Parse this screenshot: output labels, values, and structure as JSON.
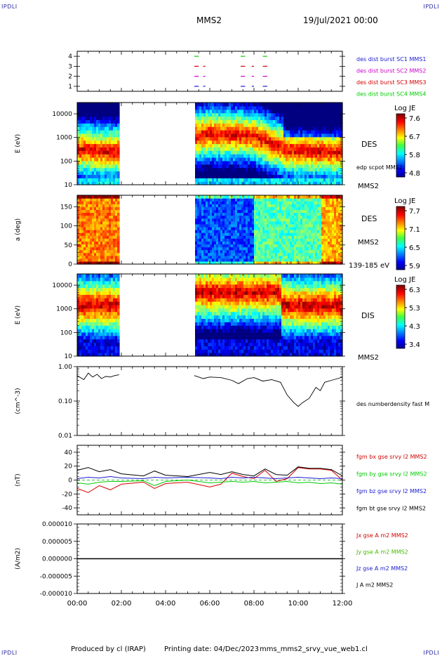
{
  "header": {
    "corner_label": "IPDLI",
    "spacecraft": "MMS2",
    "datetime": "19/Jul/2021 00:00"
  },
  "footer": {
    "produced_by": "Produced by cl (IRAP)",
    "printing_date": "Printing date: 04/Dec/2023",
    "script_name": "mms_mms2_srvy_vue_web1.cl"
  },
  "time_axis": {
    "range_hours": [
      0,
      12
    ],
    "tick_labels": [
      "00:00",
      "02:00",
      "04:00",
      "06:00",
      "08:00",
      "10:00",
      "12:00"
    ]
  },
  "colors": {
    "mms1": "#1a1ad0",
    "mms2": "#cc00cc",
    "mms3": "#d40000",
    "mms4": "#00cc00",
    "bx": "#d40000",
    "by": "#00cc00",
    "bz": "#1a1ad0",
    "bt": "#000000"
  },
  "chart_data": [
    {
      "type": "scatter",
      "panel": "burst-availability",
      "yticks": [
        "1",
        "2",
        "3",
        "4"
      ],
      "ylim": [
        0.5,
        4.5
      ],
      "legend": [
        "des dist burst SC1 MMS1",
        "des dist burst SC2 MMS2",
        "des dist burst SC3 MMS3",
        "des dist burst SC4 MMS4"
      ],
      "series": [
        {
          "name": "des dist burst SC1 MMS1",
          "y": 1,
          "intervals_hours": [
            [
              5.3,
              5.5
            ],
            [
              5.7,
              5.8
            ],
            [
              7.4,
              7.6
            ],
            [
              7.9,
              8.0
            ],
            [
              8.4,
              8.6
            ]
          ]
        },
        {
          "name": "des dist burst SC2 MMS2",
          "y": 2,
          "intervals_hours": [
            [
              5.3,
              5.5
            ],
            [
              5.7,
              5.8
            ],
            [
              7.4,
              7.6
            ],
            [
              7.9,
              8.0
            ],
            [
              8.4,
              8.6
            ]
          ]
        },
        {
          "name": "des dist burst SC3 MMS3",
          "y": 3,
          "intervals_hours": [
            [
              5.3,
              5.5
            ],
            [
              5.7,
              5.8
            ],
            [
              7.4,
              7.6
            ],
            [
              7.9,
              8.0
            ],
            [
              8.4,
              8.6
            ]
          ]
        },
        {
          "name": "des dist burst SC4 MMS4",
          "y": 4,
          "intervals_hours": [
            [
              5.3,
              5.5
            ],
            [
              7.4,
              7.6
            ],
            [
              8.4,
              8.6
            ]
          ]
        }
      ]
    },
    {
      "type": "heatmap",
      "panel": "des-energy",
      "ylabel": "E (eV)",
      "yscale": "log",
      "ylim": [
        10,
        30000
      ],
      "ytick_labels": [
        "10",
        "100",
        "1000",
        "10000"
      ],
      "right_labels": [
        "DES",
        "MMS2"
      ],
      "overlay_label": "edp scpot MMS2",
      "colorbar": {
        "title": "Log JE",
        "ticks": [
          "7.6",
          "6.7",
          "5.8",
          "4.8"
        ],
        "range": [
          4.8,
          7.6
        ]
      },
      "data_gap_hours": [
        1.95,
        5.3
      ],
      "peak_energy_ev_at_hours": [
        [
          0.5,
          300
        ],
        [
          1.5,
          250
        ],
        [
          6.0,
          1500
        ],
        [
          8.0,
          1200
        ],
        [
          9.5,
          300
        ],
        [
          11.5,
          250
        ]
      ]
    },
    {
      "type": "heatmap",
      "panel": "des-pitch-angle",
      "ylabel": "a (deg)",
      "ylim": [
        0,
        180
      ],
      "ytick_labels": [
        "0",
        "50",
        "100",
        "150"
      ],
      "right_labels": [
        "DES",
        "MMS2",
        "139-185 eV"
      ],
      "colorbar": {
        "title": "Log JE",
        "ticks": [
          "7.7",
          "7.1",
          "6.5",
          "5.9"
        ],
        "range": [
          5.9,
          7.7
        ]
      },
      "data_gap_hours": [
        1.95,
        5.3
      ]
    },
    {
      "type": "heatmap",
      "panel": "dis-energy",
      "ylabel": "E (eV)",
      "yscale": "log",
      "ylim": [
        10,
        30000
      ],
      "ytick_labels": [
        "10",
        "100",
        "1000",
        "10000"
      ],
      "right_labels": [
        "DIS",
        "MMS2"
      ],
      "colorbar": {
        "title": "Log JE",
        "ticks": [
          "6.3",
          "5.3",
          "4.3",
          "3.4"
        ],
        "range": [
          3.4,
          6.3
        ]
      },
      "data_gap_hours": [
        1.95,
        5.3
      ]
    },
    {
      "type": "line",
      "panel": "density",
      "ylabel": "(cm^-3)",
      "yscale": "log",
      "ylim": [
        0.01,
        1.0
      ],
      "ytick_labels": [
        "0.01",
        "0.10",
        "1.00"
      ],
      "series": [
        {
          "name": "des numberdensity fast M",
          "x_hours": [
            0.0,
            0.3,
            0.5,
            0.7,
            0.9,
            1.1,
            1.3,
            1.5,
            1.7,
            1.9,
            5.3,
            5.7,
            6.0,
            6.5,
            7.0,
            7.3,
            7.7,
            8.0,
            8.4,
            8.8,
            9.2,
            9.5,
            9.8,
            10.0,
            10.2,
            10.5,
            10.8,
            11.0,
            11.2,
            11.5,
            11.8,
            12.0
          ],
          "y": [
            0.55,
            0.42,
            0.65,
            0.5,
            0.6,
            0.45,
            0.52,
            0.5,
            0.55,
            0.58,
            0.55,
            0.45,
            0.5,
            0.48,
            0.4,
            0.32,
            0.45,
            0.48,
            0.38,
            0.42,
            0.35,
            0.15,
            0.09,
            0.07,
            0.09,
            0.12,
            0.25,
            0.2,
            0.35,
            0.4,
            0.45,
            0.5
          ]
        }
      ]
    },
    {
      "type": "line",
      "panel": "magnetic-field",
      "ylabel": "(nT)",
      "ylim": [
        -50,
        50
      ],
      "ytick_labels": [
        "-40",
        "-20",
        "0",
        "20",
        "40"
      ],
      "series": [
        {
          "name": "fgm bx gse srvy l2 MMS2",
          "x_hours": [
            0,
            0.5,
            1.0,
            1.5,
            2.0,
            3.0,
            3.5,
            4.0,
            5.0,
            6.0,
            6.5,
            7.0,
            7.5,
            8.0,
            8.5,
            9.0,
            9.5,
            10.0,
            10.5,
            11.0,
            11.5,
            12.0
          ],
          "y": [
            -12,
            -18,
            -8,
            -14,
            -6,
            -3,
            -12,
            -5,
            -3,
            -10,
            -6,
            10,
            5,
            2,
            14,
            -2,
            2,
            18,
            16,
            16,
            14,
            0
          ]
        },
        {
          "name": "fgm by gse srvy l2 MMS2",
          "x_hours": [
            0,
            0.5,
            1.0,
            1.5,
            2.0,
            3.0,
            3.5,
            4.0,
            5.0,
            6.0,
            6.5,
            7.0,
            7.5,
            8.0,
            8.5,
            9.0,
            9.5,
            10.0,
            10.5,
            11.0,
            11.5,
            12.0
          ],
          "y": [
            -4,
            -6,
            -3,
            -2,
            -2,
            -1,
            -8,
            -2,
            0,
            -4,
            -3,
            -2,
            -3,
            -2,
            -4,
            -3,
            -2,
            -4,
            -3,
            -5,
            -4,
            -6
          ]
        },
        {
          "name": "fgm bz gse srvy l2 MMS2",
          "x_hours": [
            0,
            0.5,
            1.0,
            1.5,
            2.0,
            3.0,
            3.5,
            4.0,
            5.0,
            6.0,
            6.5,
            7.0,
            7.5,
            8.0,
            8.5,
            9.0,
            9.5,
            10.0,
            10.5,
            11.0,
            11.5,
            12.0
          ],
          "y": [
            2,
            4,
            3,
            5,
            3,
            2,
            4,
            3,
            4,
            3,
            2,
            4,
            3,
            4,
            3,
            2,
            3,
            4,
            3,
            2,
            3,
            2
          ]
        },
        {
          "name": "fgm bt gse srvy l2 MMS2",
          "x_hours": [
            0,
            0.5,
            1.0,
            1.5,
            2.0,
            3.0,
            3.5,
            4.0,
            5.0,
            6.0,
            6.5,
            7.0,
            7.5,
            8.0,
            8.5,
            9.0,
            9.5,
            10.0,
            10.5,
            11.0,
            11.5,
            12.0
          ],
          "y": [
            14,
            18,
            12,
            15,
            9,
            6,
            13,
            7,
            5,
            11,
            8,
            12,
            8,
            6,
            16,
            8,
            7,
            19,
            17,
            17,
            15,
            6
          ]
        }
      ]
    },
    {
      "type": "line",
      "panel": "current-density",
      "ylabel": "(A/m2)",
      "ylim": [
        -1e-05,
        1e-05
      ],
      "ytick_labels": [
        "-0.000010",
        "-0.000005",
        "0.000000",
        "0.000005",
        "0.000010"
      ],
      "series": [
        {
          "name": "Jx gse A m2 MMS2",
          "x_hours": [
            0,
            12
          ],
          "y": [
            0,
            0
          ]
        },
        {
          "name": "Jy gse A m2 MMS2",
          "x_hours": [
            0,
            12
          ],
          "y": [
            0,
            0
          ]
        },
        {
          "name": "Jz gse A m2 MMS2",
          "x_hours": [
            0,
            12
          ],
          "y": [
            0,
            0
          ]
        },
        {
          "name": "J A m2 MMS2",
          "x_hours": [
            0,
            12
          ],
          "y": [
            0,
            0
          ]
        }
      ]
    }
  ]
}
